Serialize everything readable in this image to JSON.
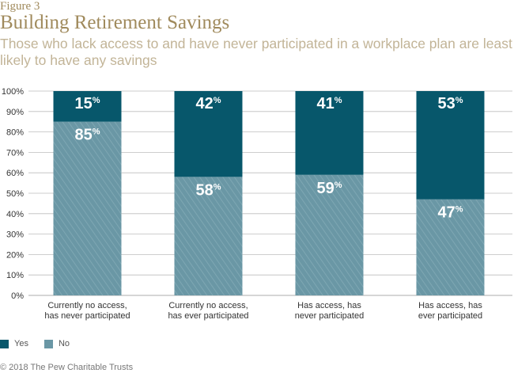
{
  "figure_label": "Figure 3",
  "footer": "© 2018 The Pew Charitable Trusts",
  "colors": {
    "yes": "#07576b",
    "no": "#6a97a5",
    "grid": "#bdbdbd",
    "text": "#333333"
  },
  "chart_data": {
    "type": "bar",
    "stacked": true,
    "title": "Building Retirement Savings",
    "subtitle": "Those who lack access to and have never participated in a workplace plan are least likely to have any savings",
    "categories": [
      [
        "Currently no access,",
        "has never participated"
      ],
      [
        "Currently no access,",
        "has ever participated"
      ],
      [
        "Has access, has",
        "never participated"
      ],
      [
        "Has access, has",
        "ever participated"
      ]
    ],
    "series": [
      {
        "name": "No",
        "values": [
          85,
          58,
          59,
          47
        ],
        "labels": [
          "85",
          "58",
          "59",
          "47"
        ]
      },
      {
        "name": "Yes",
        "values": [
          15,
          42,
          41,
          53
        ],
        "labels": [
          "15",
          "42",
          "41",
          "53"
        ]
      }
    ],
    "value_suffix": "%",
    "ylim": [
      0,
      100
    ],
    "yticks": [
      "0%",
      "10%",
      "20%",
      "30%",
      "40%",
      "50%",
      "60%",
      "70%",
      "80%",
      "90%",
      "100%"
    ],
    "grid": true,
    "legend_position": "bottom-left",
    "legend": [
      {
        "name": "Yes",
        "color_key": "yes"
      },
      {
        "name": "No",
        "color_key": "no"
      }
    ]
  }
}
